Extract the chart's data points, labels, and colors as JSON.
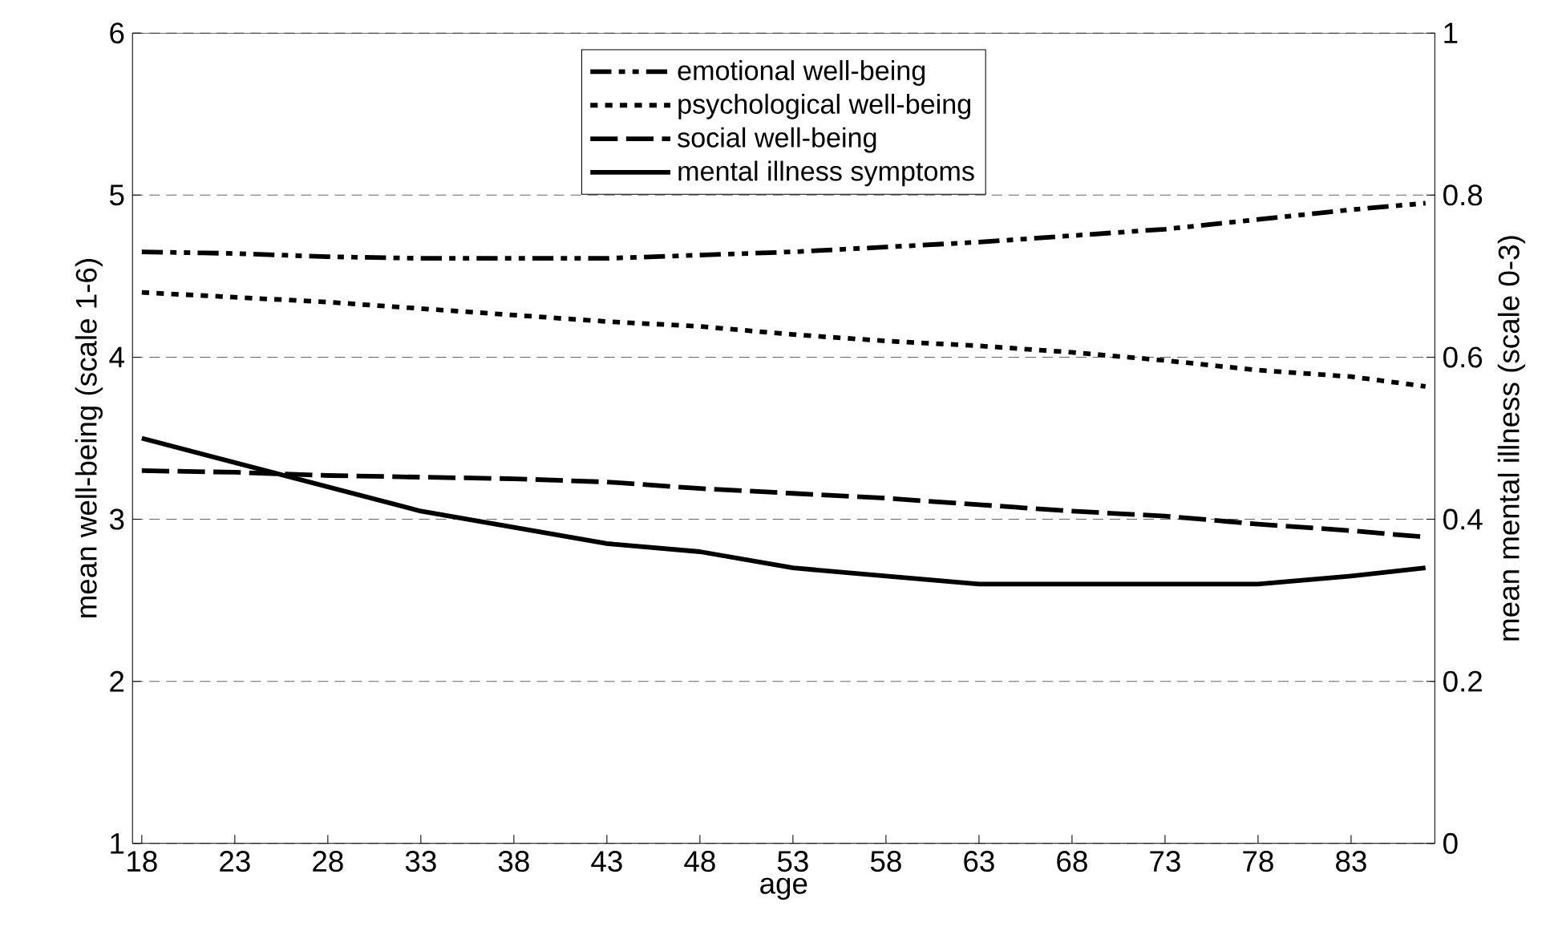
{
  "chart_data": {
    "type": "line",
    "xlabel": "age",
    "ylabel": "mean well-being (scale 1-6)",
    "y2label": "mean mental illness (scale 0-3)",
    "x": [
      18,
      23,
      28,
      33,
      38,
      43,
      48,
      53,
      58,
      63,
      68,
      73,
      78,
      83,
      87
    ],
    "xlim": [
      17.5,
      87.5
    ],
    "xticks": [
      18,
      23,
      28,
      33,
      38,
      43,
      48,
      53,
      58,
      63,
      68,
      73,
      78,
      83
    ],
    "ylim": [
      1,
      6
    ],
    "yticks": [
      1,
      2,
      3,
      4,
      5,
      6
    ],
    "y2lim": [
      0,
      1
    ],
    "y2ticks": [
      0,
      0.2,
      0.4,
      0.6,
      0.8,
      1
    ],
    "grid": "y",
    "legend": "top",
    "marker": "none",
    "series": [
      {
        "name": "emotional well-being",
        "color": "#000000",
        "line_style": "dashdotdotted",
        "values": [
          4.65,
          4.64,
          4.62,
          4.61,
          4.61,
          4.61,
          4.63,
          4.65,
          4.68,
          4.71,
          4.75,
          4.79,
          4.85,
          4.91,
          4.95
        ]
      },
      {
        "name": "psychological well-being",
        "color": "#000000",
        "line_style": "dotted",
        "values": [
          4.4,
          4.37,
          4.34,
          4.3,
          4.26,
          4.22,
          4.19,
          4.14,
          4.1,
          4.07,
          4.03,
          3.98,
          3.92,
          3.88,
          3.82
        ]
      },
      {
        "name": "social well-being",
        "color": "#000000",
        "line_style": "dashed",
        "values": [
          3.3,
          3.29,
          3.27,
          3.26,
          3.25,
          3.23,
          3.19,
          3.16,
          3.13,
          3.09,
          3.05,
          3.02,
          2.97,
          2.93,
          2.89
        ]
      },
      {
        "name": "mental illness symptoms",
        "color": "#000000",
        "line_style": "solid",
        "axis": "y2",
        "values": [
          0.5,
          0.47,
          0.44,
          0.41,
          0.39,
          0.37,
          0.36,
          0.34,
          0.33,
          0.32,
          0.32,
          0.32,
          0.32,
          0.33,
          0.34
        ]
      }
    ]
  }
}
